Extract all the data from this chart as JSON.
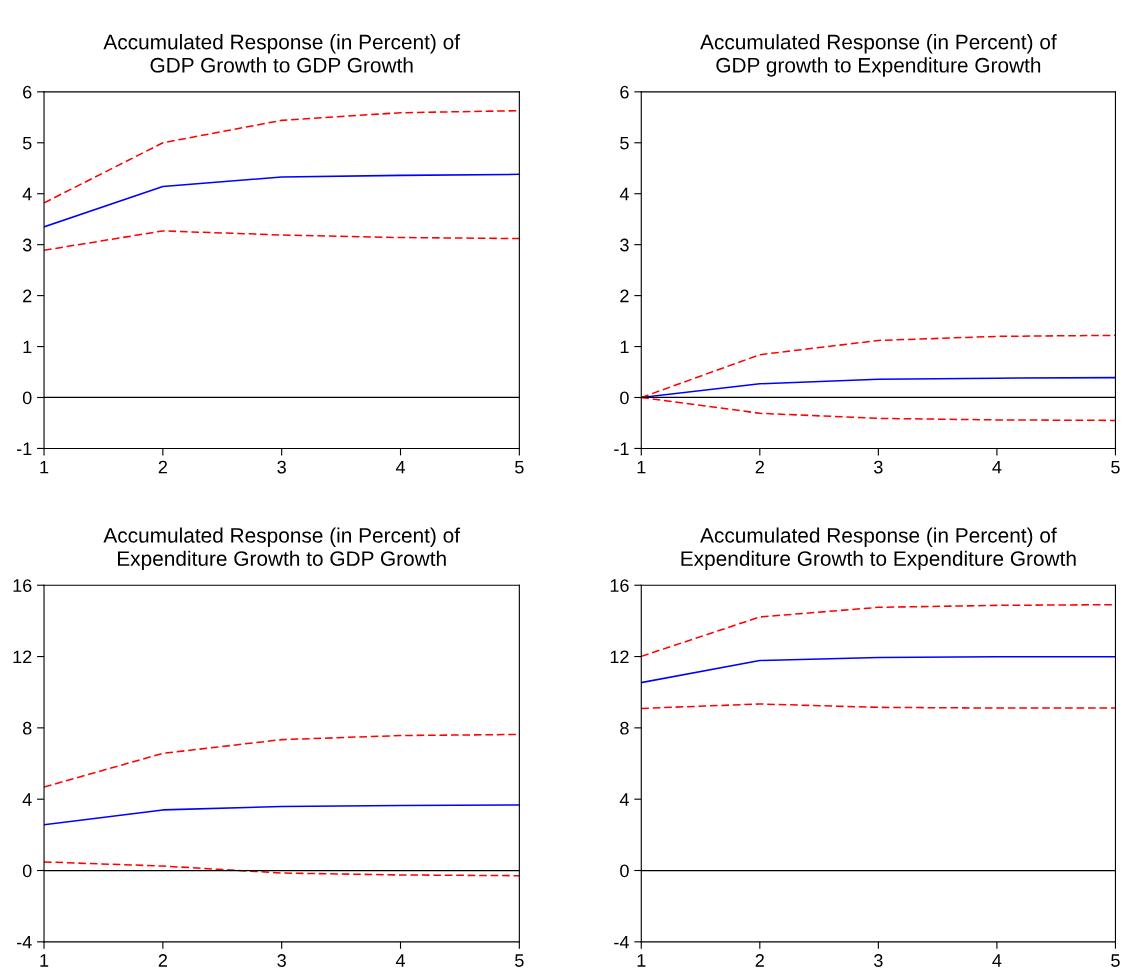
{
  "chart_data": [
    {
      "type": "line",
      "title": "Accumulated Response (in Percent) of\nGDP Growth to GDP Growth",
      "x": [
        1,
        2,
        3,
        4,
        5
      ],
      "xlim": [
        1,
        5
      ],
      "xticks": [
        1,
        2,
        3,
        4,
        5
      ],
      "ylim": [
        -1,
        6
      ],
      "yticks": [
        -1,
        0,
        1,
        2,
        3,
        4,
        5,
        6
      ],
      "grid": false,
      "legend": false,
      "ref_lines": [
        {
          "axis": "y",
          "value": 0,
          "color": "#000000",
          "line_style": "solid"
        }
      ],
      "series": [
        {
          "color": "#0000ff",
          "line_style": "solid",
          "values": [
            3.35,
            4.14,
            4.33,
            4.36,
            4.38
          ]
        },
        {
          "color": "#ff0000",
          "line_style": "dashed",
          "values": [
            3.82,
            5.0,
            5.44,
            5.59,
            5.63
          ]
        },
        {
          "color": "#ff0000",
          "line_style": "dashed",
          "values": [
            2.89,
            3.27,
            3.19,
            3.14,
            3.12
          ]
        }
      ]
    },
    {
      "type": "line",
      "title": "Accumulated Response (in Percent) of\nGDP growth to Expenditure Growth",
      "x": [
        1,
        2,
        3,
        4,
        5
      ],
      "xlim": [
        1,
        5
      ],
      "xticks": [
        1,
        2,
        3,
        4,
        5
      ],
      "ylim": [
        -1,
        6
      ],
      "yticks": [
        -1,
        0,
        1,
        2,
        3,
        4,
        5,
        6
      ],
      "grid": false,
      "legend": false,
      "ref_lines": [
        {
          "axis": "y",
          "value": 0,
          "color": "#000000",
          "line_style": "solid"
        }
      ],
      "series": [
        {
          "color": "#0000ff",
          "line_style": "solid",
          "values": [
            0,
            0.27,
            0.36,
            0.38,
            0.39
          ]
        },
        {
          "color": "#ff0000",
          "line_style": "dashed",
          "values": [
            0,
            0.84,
            1.12,
            1.2,
            1.22
          ]
        },
        {
          "color": "#ff0000",
          "line_style": "dashed",
          "values": [
            0,
            -0.31,
            -0.41,
            -0.44,
            -0.45
          ]
        }
      ]
    },
    {
      "type": "line",
      "title": "Accumulated Response (in Percent) of\nExpenditure Growth to GDP Growth",
      "x": [
        1,
        2,
        3,
        4,
        5
      ],
      "xlim": [
        1,
        5
      ],
      "xticks": [
        1,
        2,
        3,
        4,
        5
      ],
      "ylim": [
        -4,
        16
      ],
      "yticks": [
        -4,
        0,
        4,
        8,
        12,
        16
      ],
      "grid": false,
      "legend": false,
      "ref_lines": [
        {
          "axis": "y",
          "value": 0,
          "color": "#000000",
          "line_style": "solid"
        }
      ],
      "series": [
        {
          "color": "#0000ff",
          "line_style": "solid",
          "values": [
            2.57,
            3.4,
            3.59,
            3.65,
            3.67
          ]
        },
        {
          "color": "#ff0000",
          "line_style": "dashed",
          "values": [
            4.68,
            6.57,
            7.34,
            7.57,
            7.63
          ]
        },
        {
          "color": "#ff0000",
          "line_style": "dashed",
          "values": [
            0.48,
            0.25,
            -0.14,
            -0.25,
            -0.29
          ]
        }
      ]
    },
    {
      "type": "line",
      "title": "Accumulated Response (in Percent) of\nExpenditure Growth to Expenditure Growth",
      "x": [
        1,
        2,
        3,
        4,
        5
      ],
      "xlim": [
        1,
        5
      ],
      "xticks": [
        1,
        2,
        3,
        4,
        5
      ],
      "ylim": [
        -4,
        16
      ],
      "yticks": [
        -4,
        0,
        4,
        8,
        12,
        16
      ],
      "grid": false,
      "legend": false,
      "ref_lines": [
        {
          "axis": "y",
          "value": 0,
          "color": "#000000",
          "line_style": "solid"
        }
      ],
      "series": [
        {
          "color": "#0000ff",
          "line_style": "solid",
          "values": [
            10.54,
            11.78,
            11.95,
            11.99,
            11.99
          ]
        },
        {
          "color": "#ff0000",
          "line_style": "dashed",
          "values": [
            12.01,
            14.22,
            14.76,
            14.87,
            14.91
          ]
        },
        {
          "color": "#ff0000",
          "line_style": "dashed",
          "values": [
            9.09,
            9.34,
            9.15,
            9.11,
            9.11
          ]
        }
      ]
    }
  ]
}
